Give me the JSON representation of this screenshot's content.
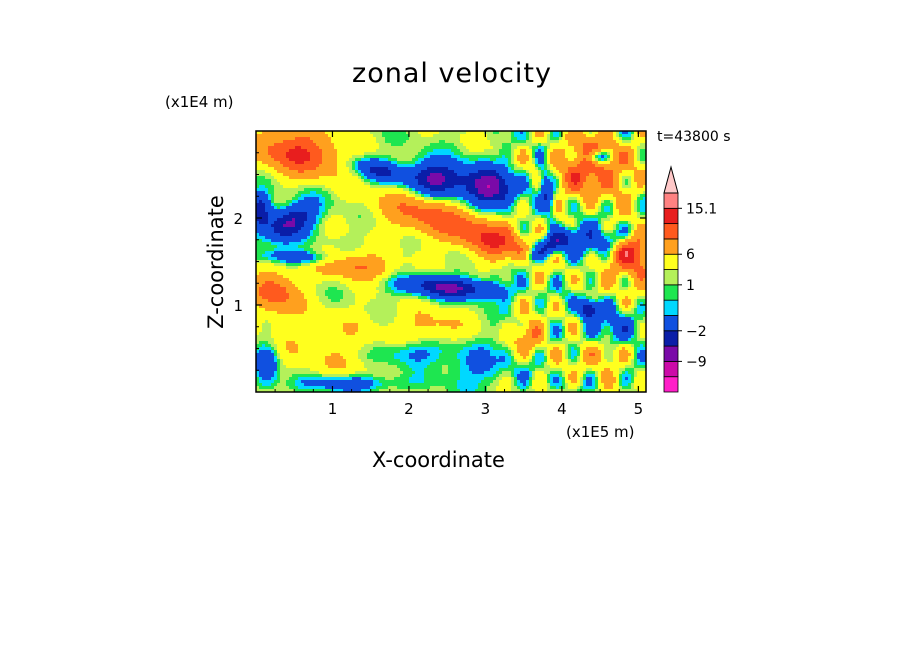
{
  "title": "zonal velocity",
  "time_label": "t=43800 s",
  "chart_data": {
    "type": "heatmap",
    "title": "zonal velocity",
    "xlabel": "X-coordinate",
    "ylabel": "Z-coordinate",
    "x_unit": "(x1E5 m)",
    "y_unit": "(x1E4 m)",
    "xlim": [
      0,
      5.1
    ],
    "ylim": [
      0,
      3.0
    ],
    "x_ticks": [
      1,
      2,
      3,
      4,
      5
    ],
    "y_ticks": [
      1,
      2
    ],
    "x_tick_labels": [
      "1",
      "2",
      "3",
      "4",
      "5"
    ],
    "y_tick_labels": [
      "1",
      "2"
    ],
    "colorbar": {
      "levels": [
        -15,
        -12,
        -9,
        -6,
        -2,
        -1,
        0,
        1,
        3,
        6,
        9,
        12,
        15.1
      ],
      "tick_labels": [
        {
          "value": 15.1,
          "label": "15.1"
        },
        {
          "value": 6,
          "label": "6"
        },
        {
          "value": 1,
          "label": "1"
        },
        {
          "value": -2,
          "label": "−2"
        },
        {
          "value": -9,
          "label": "−9"
        }
      ],
      "colors": [
        "#ff1ec8",
        "#cc0aa8",
        "#7a0aa8",
        "#0a1ea8",
        "#1050e0",
        "#00d8ff",
        "#1ee650",
        "#b4f05a",
        "#ffff1e",
        "#ffa01e",
        "#ff5a1e",
        "#e81e1e",
        "#ff8282",
        "#ffc8c8"
      ]
    },
    "grid": false,
    "field": {
      "features": [
        {
          "x": 0.55,
          "z": 2.75,
          "u": 9,
          "rx": 0.55,
          "rz": 0.25,
          "angle": -8
        },
        {
          "x": 1.6,
          "z": 2.55,
          "u": -7,
          "rx": 0.35,
          "rz": 0.12,
          "angle": -12
        },
        {
          "x": 2.35,
          "z": 2.45,
          "u": -11,
          "rx": 0.35,
          "rz": 0.2,
          "angle": -5
        },
        {
          "x": 3.05,
          "z": 2.35,
          "u": -12,
          "rx": 0.35,
          "rz": 0.22,
          "angle": -10
        },
        {
          "x": 2.2,
          "z": 2.05,
          "u": 6,
          "rx": 0.6,
          "rz": 0.25,
          "angle": -10
        },
        {
          "x": 3.1,
          "z": 1.75,
          "u": 8,
          "rx": 0.55,
          "rz": 0.22,
          "angle": -15
        },
        {
          "x": 0.45,
          "z": 1.95,
          "u": -10,
          "rx": 0.35,
          "rz": 0.18,
          "angle": 25
        },
        {
          "x": 0.05,
          "z": 2.1,
          "u": -8,
          "rx": 0.15,
          "rz": 0.2,
          "angle": 0
        },
        {
          "x": 0.55,
          "z": 1.55,
          "u": -6,
          "rx": 0.45,
          "rz": 0.08,
          "angle": -3
        },
        {
          "x": 1.3,
          "z": 1.45,
          "u": 6,
          "rx": 0.5,
          "rz": 0.15,
          "angle": -5
        },
        {
          "x": 0.25,
          "z": 1.15,
          "u": 7,
          "rx": 0.3,
          "rz": 0.25,
          "angle": 0
        },
        {
          "x": 2.55,
          "z": 1.2,
          "u": -10,
          "rx": 0.65,
          "rz": 0.12,
          "angle": -3
        },
        {
          "x": 3.9,
          "z": 1.7,
          "u": -9,
          "rx": 0.4,
          "rz": 0.12,
          "angle": 25
        },
        {
          "x": 4.6,
          "z": 1.75,
          "u": -8,
          "rx": 0.35,
          "rz": 0.15,
          "angle": 10
        },
        {
          "x": 4.9,
          "z": 1.6,
          "u": 10,
          "rx": 0.3,
          "rz": 0.3,
          "angle": 0
        },
        {
          "x": 4.4,
          "z": 2.6,
          "u": 8,
          "rx": 0.45,
          "rz": 0.35,
          "angle": 0
        },
        {
          "x": 4.45,
          "z": 2.7,
          "u": -10,
          "rx": 0.15,
          "rz": 0.08,
          "angle": 0
        },
        {
          "x": 3.8,
          "z": 2.3,
          "u": -6,
          "rx": 0.08,
          "rz": 0.35,
          "angle": 10
        },
        {
          "x": 4.35,
          "z": 0.95,
          "u": -11,
          "rx": 0.12,
          "rz": 0.12,
          "angle": 0
        },
        {
          "x": 4.7,
          "z": 0.7,
          "u": -5,
          "rx": 0.35,
          "rz": 0.2,
          "angle": 0
        },
        {
          "x": 4.5,
          "z": 0.45,
          "u": 5,
          "rx": 0.25,
          "rz": 0.18,
          "angle": 0
        },
        {
          "x": 1.0,
          "z": 0.5,
          "u": 2,
          "rx": 1.0,
          "rz": 0.45,
          "angle": 0
        },
        {
          "x": 2.0,
          "z": 0.45,
          "u": -4,
          "rx": 0.45,
          "rz": 0.15,
          "angle": 0
        },
        {
          "x": 2.3,
          "z": 0.75,
          "u": 3,
          "rx": 0.4,
          "rz": 0.2,
          "angle": 0
        },
        {
          "x": 0.15,
          "z": 0.3,
          "u": -6,
          "rx": 0.15,
          "rz": 0.25,
          "angle": 0
        },
        {
          "x": 1.2,
          "z": 0.1,
          "u": -5,
          "rx": 0.7,
          "rz": 0.1,
          "angle": 0
        },
        {
          "x": 2.9,
          "z": 0.3,
          "u": -3,
          "rx": 0.5,
          "rz": 0.25,
          "angle": 0
        },
        {
          "x": 3.6,
          "z": 0.65,
          "u": 5,
          "rx": 0.2,
          "rz": 0.2,
          "angle": 0
        }
      ]
    }
  }
}
